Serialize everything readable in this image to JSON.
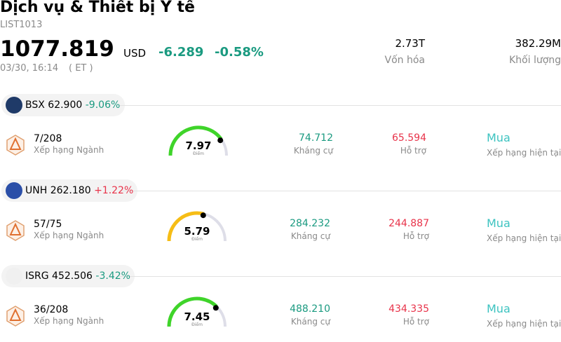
{
  "header": {
    "title": "Dịch vụ & Thiết bị Y tế",
    "code": "LIST1013",
    "price": "1077.819",
    "currency": "USD",
    "change": "-6.289",
    "change_pct": "-0.58%",
    "time": "03/30, 16:14",
    "timezone": "( ET )",
    "stats": [
      {
        "value": "2.73T",
        "label": "Vốn hóa"
      },
      {
        "value": "382.29M",
        "label": "Khối lượng"
      }
    ]
  },
  "stocks": [
    {
      "ticker": "BSX",
      "price": "62.900",
      "change_pct": "-9.06%",
      "rank": "7/208",
      "rank_label": "Xếp hạng Ngành",
      "score": "7.97",
      "score_label": "Điểm",
      "resistance": "74.712",
      "resistance_label": "Kháng cự",
      "support": "65.594",
      "support_label": "Hỗ trợ",
      "rating": "Mua",
      "rating_label": "Xếp hạng hiện tại"
    },
    {
      "ticker": "UNH",
      "price": "262.180",
      "change_pct": "+1.22%",
      "rank": "57/75",
      "rank_label": "Xếp hạng Ngành",
      "score": "5.79",
      "score_label": "Điểm",
      "resistance": "284.232",
      "resistance_label": "Kháng cự",
      "support": "244.887",
      "support_label": "Hỗ trợ",
      "rating": "Mua",
      "rating_label": "Xếp hạng hiện tại"
    },
    {
      "ticker": "ISRG",
      "price": "452.506",
      "change_pct": "-3.42%",
      "rank": "36/208",
      "rank_label": "Xếp hạng Ngành",
      "score": "7.45",
      "score_label": "Điểm",
      "resistance": "488.210",
      "resistance_label": "Kháng cự",
      "support": "434.335",
      "support_label": "Hỗ trợ",
      "rating": "Mua",
      "rating_label": "Xếp hạng hiện tại"
    }
  ]
}
